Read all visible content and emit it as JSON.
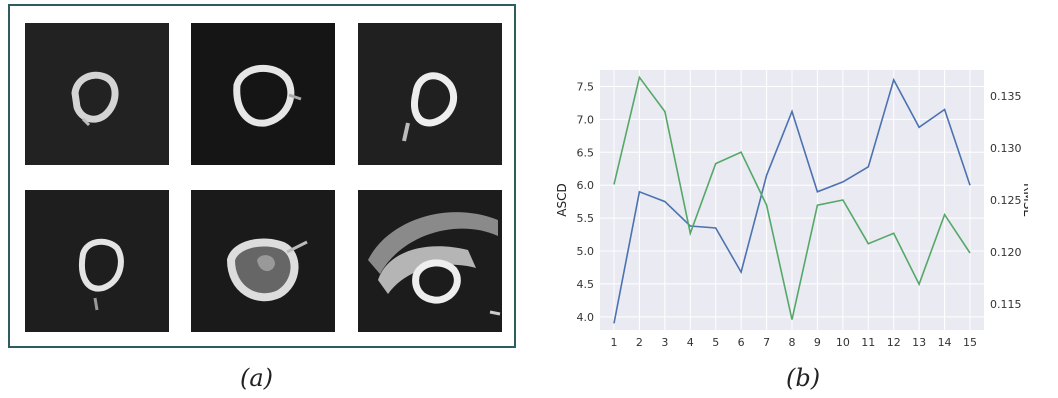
{
  "captions": {
    "a": "(a)",
    "b": "(b)"
  },
  "images": [
    {
      "alt": "ultrasound-frame-1"
    },
    {
      "alt": "ultrasound-frame-2"
    },
    {
      "alt": "ultrasound-frame-3"
    },
    {
      "alt": "ultrasound-frame-4"
    },
    {
      "alt": "ultrasound-frame-5"
    },
    {
      "alt": "ultrasound-frame-6"
    }
  ],
  "chart_data": {
    "type": "line",
    "x": [
      1,
      2,
      3,
      4,
      5,
      6,
      7,
      8,
      9,
      10,
      11,
      12,
      13,
      14,
      15
    ],
    "ylabel": "ASCD",
    "y2label": "RMSE",
    "ylim": [
      3.8,
      7.75
    ],
    "y2lim": [
      0.1125,
      0.1375
    ],
    "yticks": [
      "4.0",
      "4.5",
      "5.0",
      "5.5",
      "6.0",
      "6.5",
      "7.0",
      "7.5"
    ],
    "y2ticks": [
      "0.115",
      "0.120",
      "0.125",
      "0.130",
      "0.135"
    ],
    "grid": true,
    "series": [
      {
        "axis": "left",
        "color": "#4c72b0",
        "values": [
          3.9,
          5.9,
          5.75,
          5.38,
          5.35,
          4.68,
          6.15,
          7.12,
          5.9,
          6.05,
          6.28,
          7.6,
          6.88,
          7.15,
          6.0
        ]
      },
      {
        "axis": "right",
        "color": "#55a868",
        "values": [
          0.1265,
          0.1368,
          0.1335,
          0.1218,
          0.1285,
          0.1296,
          0.1245,
          0.1135,
          0.1245,
          0.125,
          0.1208,
          0.1218,
          0.1169,
          0.1236,
          0.1199
        ]
      }
    ]
  }
}
